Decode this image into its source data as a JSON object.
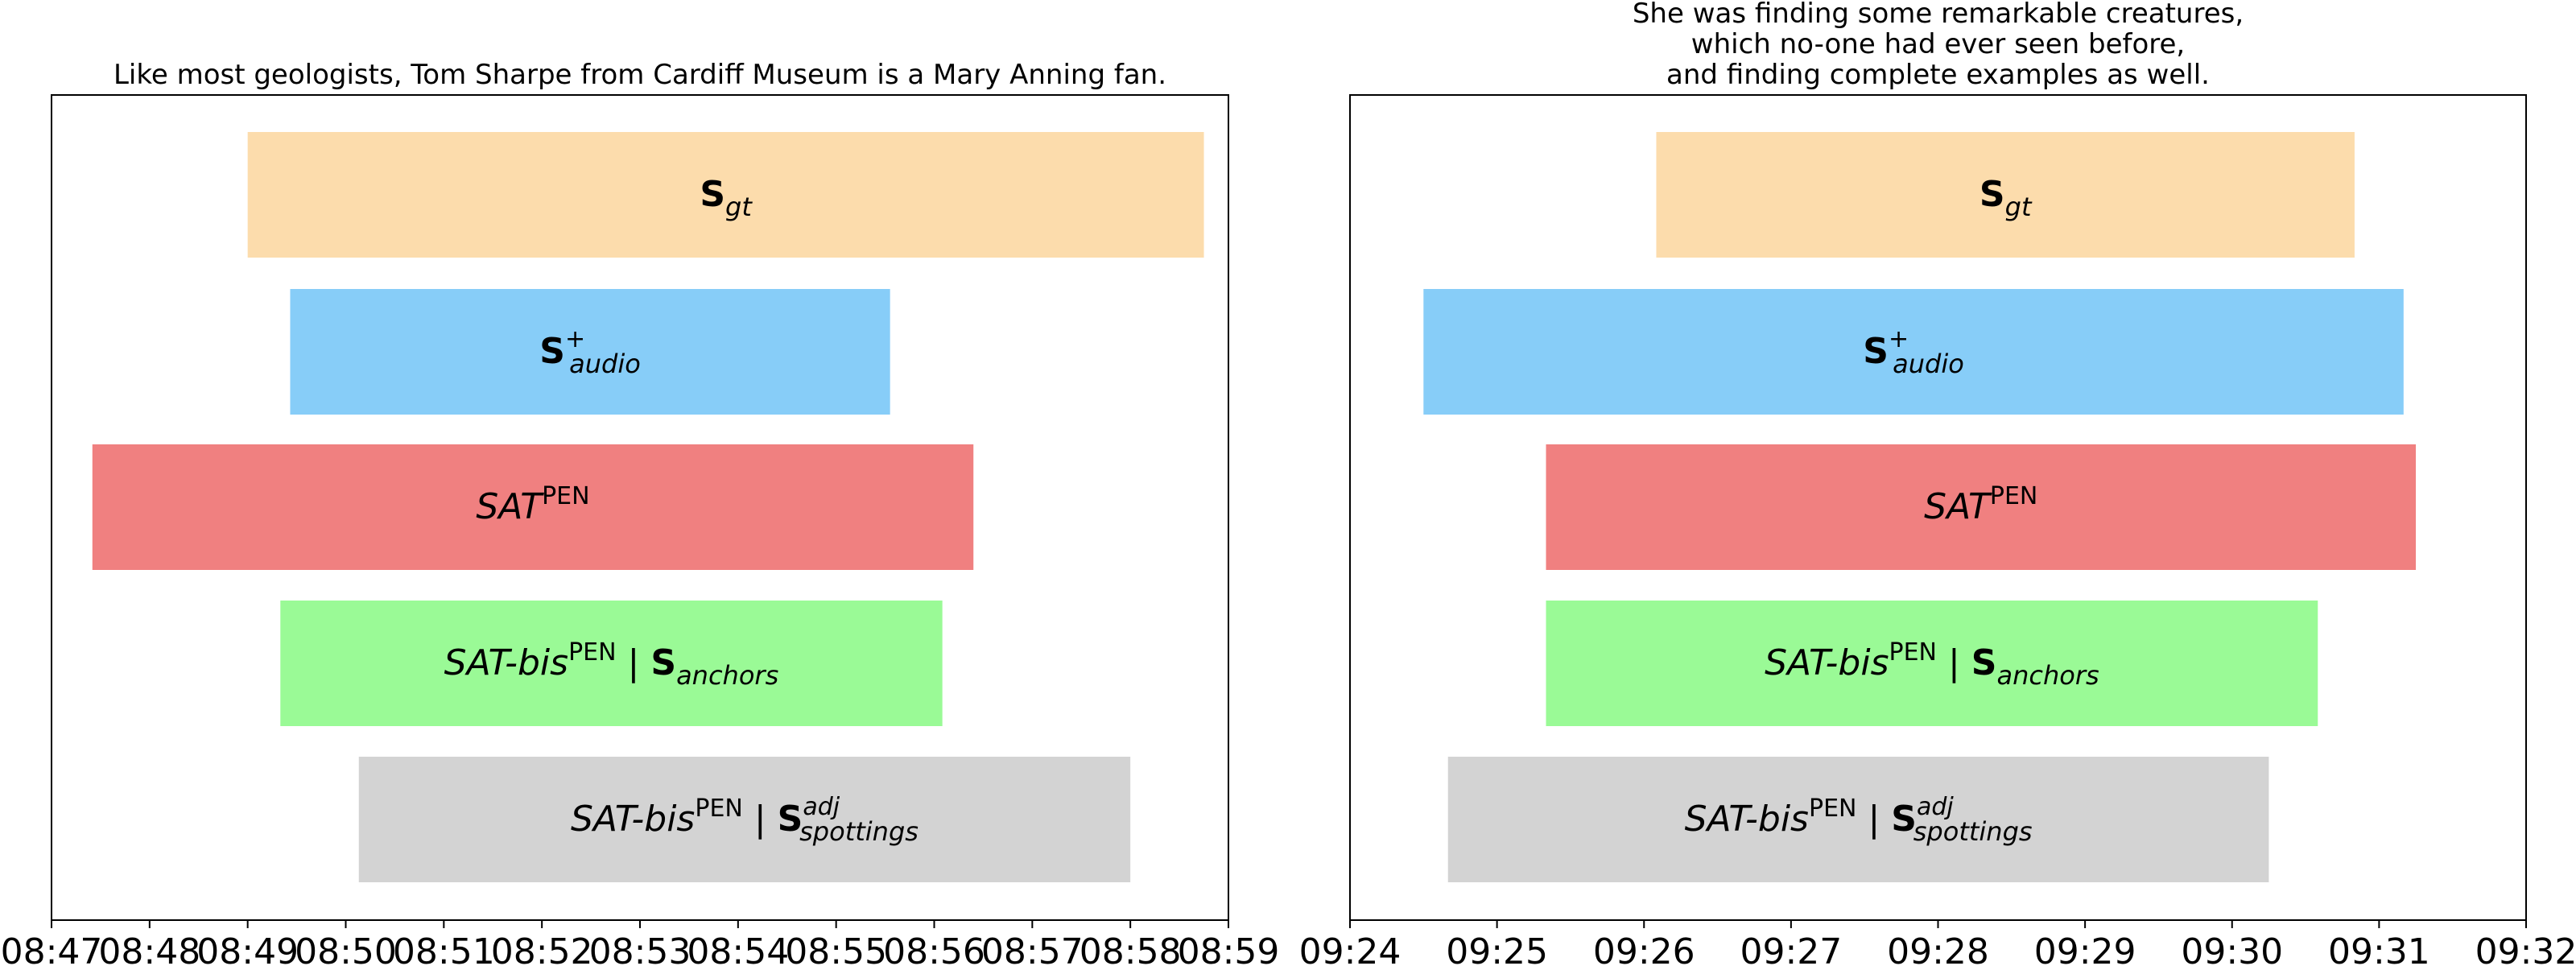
{
  "chart_data": [
    {
      "type": "bar",
      "orientation": "horizontal",
      "title": "Like most geologists, Tom Sharpe from Cardiff Museum is a Mary Anning fan.",
      "x_ticks": [
        "08:47",
        "08:48",
        "08:49",
        "08:50",
        "08:51",
        "08:52",
        "08:53",
        "08:54",
        "08:55",
        "08:56",
        "08:57",
        "08:58",
        "08:59"
      ],
      "xlim": [
        "08:47:00",
        "08:59:00"
      ],
      "grid": false,
      "bars": [
        {
          "label": "S_gt",
          "start": "08:49:00",
          "end": "08:58:45",
          "color": "#fcdcac"
        },
        {
          "label": "S+_audio",
          "start": "08:49:26",
          "end": "08:55:33",
          "color": "#87cdf8"
        },
        {
          "label": "SAT^PEN",
          "start": "08:47:25",
          "end": "08:56:24",
          "color": "#f08080"
        },
        {
          "label": "SAT-bis^PEN | S_anchors",
          "start": "08:49:20",
          "end": "08:56:05",
          "color": "#9afa96"
        },
        {
          "label": "SAT-bis^PEN | S^adj_spottings",
          "start": "08:50:08",
          "end": "08:58:00",
          "color": "#d3d3d3"
        }
      ]
    },
    {
      "type": "bar",
      "orientation": "horizontal",
      "title": "She was finding some remarkable creatures,\nwhich no-one had ever seen before,\nand finding complete examples as well.",
      "x_ticks": [
        "09:24",
        "09:25",
        "09:26",
        "09:27",
        "09:28",
        "09:29",
        "09:30",
        "09:31",
        "09:32"
      ],
      "xlim": [
        "09:24:00",
        "09:32:00"
      ],
      "grid": false,
      "bars": [
        {
          "label": "S_gt",
          "start": "09:26:05",
          "end": "09:30:50",
          "color": "#fcdcac"
        },
        {
          "label": "S+_audio",
          "start": "09:24:30",
          "end": "09:31:10",
          "color": "#87cdf8"
        },
        {
          "label": "SAT^PEN",
          "start": "09:25:20",
          "end": "09:31:15",
          "color": "#f08080"
        },
        {
          "label": "SAT-bis^PEN | S_anchors",
          "start": "09:25:20",
          "end": "09:30:35",
          "color": "#9afa96"
        },
        {
          "label": "SAT-bis^PEN | S^adj_spottings",
          "start": "09:24:40",
          "end": "09:30:15",
          "color": "#d3d3d3"
        }
      ]
    }
  ]
}
